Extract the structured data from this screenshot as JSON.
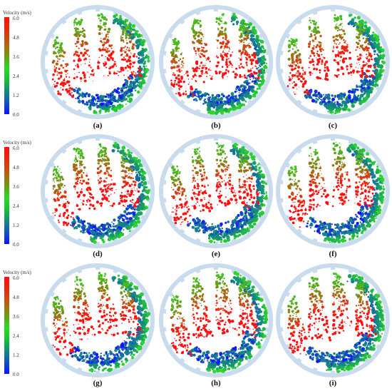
{
  "colorbar": {
    "title": "Velocity (m/s)",
    "ticks": [
      "6.0",
      "4.8",
      "3.6",
      "2.4",
      "1.2",
      "0.0"
    ],
    "colors": [
      "#ff1010",
      "#b06a10",
      "#2ed82a",
      "#1ec830",
      "#1670a0",
      "#1010ff"
    ]
  },
  "panels": [
    {
      "label": "(a)"
    },
    {
      "label": "(b)"
    },
    {
      "label": "(c)"
    },
    {
      "label": "(d)"
    },
    {
      "label": "(e)"
    },
    {
      "label": "(f)"
    },
    {
      "label": "(g)"
    },
    {
      "label": "(h)"
    },
    {
      "label": "(i)"
    }
  ]
}
